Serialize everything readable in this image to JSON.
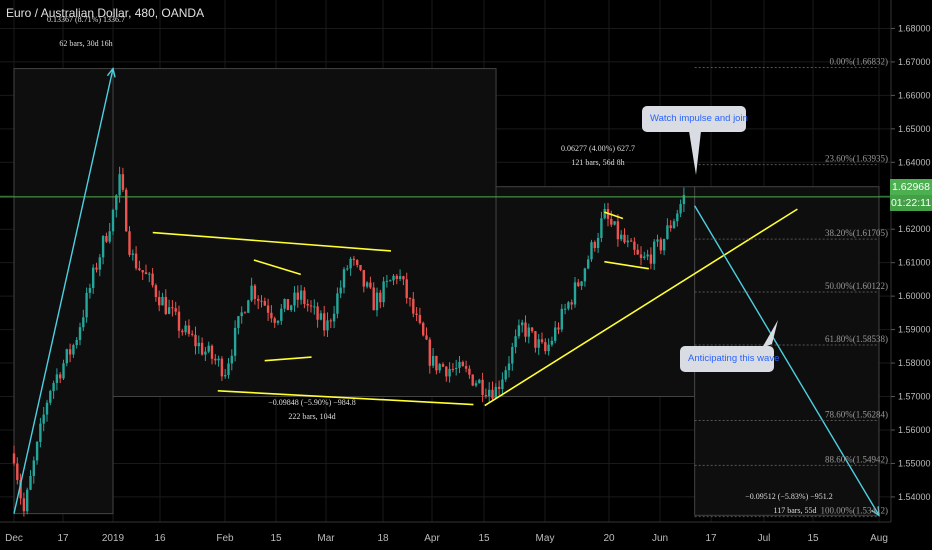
{
  "title": "Euro / Australian Dollar, 480, OANDA",
  "colors": {
    "background": "#000000",
    "up_candle": "#26a69a",
    "down_candle": "#ef5350",
    "trendline": "#ffff33",
    "arrow": "#4dd0e1",
    "current_price_line": "#4caf50",
    "fib_line": "#555555"
  },
  "price_tag": "1.62968",
  "countdown_tag": "01:22:11",
  "annotations": {
    "bubble_top": "Watch impulse and join",
    "bubble_bottom": "Anticipating this wave",
    "measure1_line1": "0.13367 (8.71%) 1336.7",
    "measure1_line2": "62 bars, 30d 16h",
    "measure2_line1": "−0.09848 (−5.90%) −984.8",
    "measure2_line2": "222 bars, 104d",
    "measure3_line1": "0.06277 (4.00%) 627.7",
    "measure3_line2": "121 bars, 56d 8h",
    "measure4_line1": "−0.09512 (−5.83%) −951.2",
    "measure4_line2": "117 bars, 55d"
  },
  "chart_data": {
    "type": "candlestick",
    "title": "Euro / Australian Dollar, 480, OANDA",
    "last_price": 1.62968,
    "ylim": [
      1.5325,
      1.6885
    ],
    "y_ticks": [
      "1.68000",
      "1.67000",
      "1.66000",
      "1.65000",
      "1.64000",
      "1.63000",
      "1.62000",
      "1.61000",
      "1.60000",
      "1.59000",
      "1.58000",
      "1.57000",
      "1.56000",
      "1.55000",
      "1.54000"
    ],
    "x_ticks": [
      "Dec",
      "17",
      "2019",
      "16",
      "Feb",
      "15",
      "Mar",
      "18",
      "Apr",
      "15",
      "May",
      "20",
      "Jun",
      "17",
      "Jul",
      "15",
      "Aug"
    ],
    "price_path": [
      [
        "Dec",
        1.553
      ],
      [
        "Dec 4",
        1.535
      ],
      [
        "Dec 12",
        1.572
      ],
      [
        "Dec 20",
        1.586
      ],
      [
        "Dec 27",
        1.61
      ],
      [
        "2019",
        1.625
      ],
      [
        "Jan 3",
        1.635
      ],
      [
        "Jan 6",
        1.612
      ],
      [
        "Jan 10",
        1.606
      ],
      [
        "Jan 20",
        1.59
      ],
      [
        "Feb",
        1.578
      ],
      [
        "Feb 8",
        1.603
      ],
      [
        "Feb 15",
        1.594
      ],
      [
        "Feb 22",
        1.6
      ],
      [
        "Mar",
        1.59
      ],
      [
        "Mar 8",
        1.611
      ],
      [
        "Mar 15",
        1.598
      ],
      [
        "Mar 22",
        1.607
      ],
      [
        "Apr",
        1.58
      ],
      [
        "Apr 10",
        1.577
      ],
      [
        "Apr 15",
        1.573
      ],
      [
        "Apr 18",
        1.572
      ],
      [
        "Apr 25",
        1.591
      ],
      [
        "May",
        1.583
      ],
      [
        "May 10",
        1.604
      ],
      [
        "May 17",
        1.624
      ],
      [
        "May 20",
        1.619
      ],
      [
        "May 27",
        1.61
      ],
      [
        "Jun",
        1.615
      ],
      [
        "Jun 8",
        1.6297
      ]
    ],
    "fib_levels": [
      {
        "label": "0.00%(1.66832)",
        "value": 1.66832
      },
      {
        "label": "23.60%(1.63935)",
        "value": 1.6393
      },
      {
        "label": "38.20%(1.61705)",
        "value": 1.61705
      },
      {
        "label": "50.00%(1.60122)",
        "value": 1.60122
      },
      {
        "label": "61.80%(1.58538)",
        "value": 1.58538
      },
      {
        "label": "78.60%(1.56284)",
        "value": 1.56284
      },
      {
        "label": "88.60%(1.54942)",
        "value": 1.54942
      },
      {
        "label": "100.00%(1.53412)",
        "value": 1.53412
      }
    ],
    "trendlines": [
      {
        "from": [
          "Jan 12",
          1.619
        ],
        "to": [
          "Mar 20",
          1.6135
        ]
      },
      {
        "from": [
          "Jan 30",
          1.5717
        ],
        "to": [
          "Apr 12",
          1.5676
        ]
      },
      {
        "from": [
          "Apr 15",
          1.5673
        ],
        "to": [
          "Jul 10",
          1.626
        ]
      },
      {
        "from": [
          "Feb 9",
          1.6108
        ],
        "to": [
          "Feb 22",
          1.6065
        ]
      },
      {
        "from": [
          "Feb 12",
          1.5807
        ],
        "to": [
          "Feb 25",
          1.5818
        ]
      },
      {
        "from": [
          "May 17",
          1.6251
        ],
        "to": [
          "May 22",
          1.6232
        ]
      },
      {
        "from": [
          "May 17",
          1.6103
        ],
        "to": [
          "May 29",
          1.6082
        ]
      }
    ],
    "projection_arrows": [
      {
        "from": [
          "Dec 1",
          1.535
        ],
        "to": [
          "2019",
          1.668
        ]
      },
      {
        "from": [
          "Jun 11",
          1.627
        ],
        "to": [
          "Aug",
          1.5345
        ]
      }
    ]
  }
}
